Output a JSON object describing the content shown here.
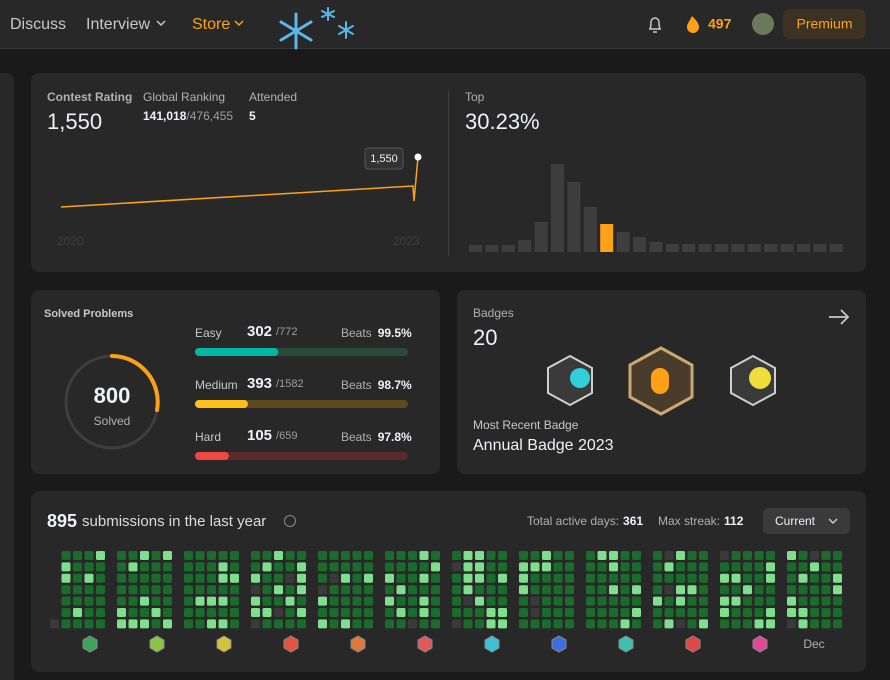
{
  "nav": {
    "discuss": "Discuss",
    "interview": "Interview",
    "store": "Store",
    "streak": "497",
    "premium": "Premium"
  },
  "contest": {
    "rating_label": "Contest Rating",
    "rating": "1,550",
    "ranking_label": "Global Ranking",
    "ranking": "141,018",
    "ranking_total": "/476,455",
    "attended_label": "Attended",
    "attended": "5",
    "tooltip": "1,550",
    "start_year": "2020",
    "end_year": "2023",
    "top_label": "Top",
    "top": "30.23%"
  },
  "problems": {
    "title": "Solved Problems",
    "solved": "800",
    "solved_label": "Solved",
    "easy": {
      "label": "Easy",
      "solved": 302,
      "total": 772,
      "total_label": "/772",
      "beats_label": "Beats",
      "beats": "99.5%"
    },
    "medium": {
      "label": "Medium",
      "solved": 393,
      "total": 1582,
      "total_label": "/1582",
      "beats_label": "Beats",
      "beats": "98.7%"
    },
    "hard": {
      "label": "Hard",
      "solved": 105,
      "total": 659,
      "total_label": "/659",
      "beats_label": "Beats",
      "beats": "97.8%"
    }
  },
  "badges": {
    "label": "Badges",
    "count": "20",
    "recent_label": "Most Recent Badge",
    "recent": "Annual Badge 2023"
  },
  "submissions": {
    "count": "895",
    "text": "submissions in the last year",
    "active_label": "Total active days:",
    "active": "361",
    "streak_label": "Max streak:",
    "streak": "112",
    "dropdown": "Current",
    "month": "Dec"
  }
}
